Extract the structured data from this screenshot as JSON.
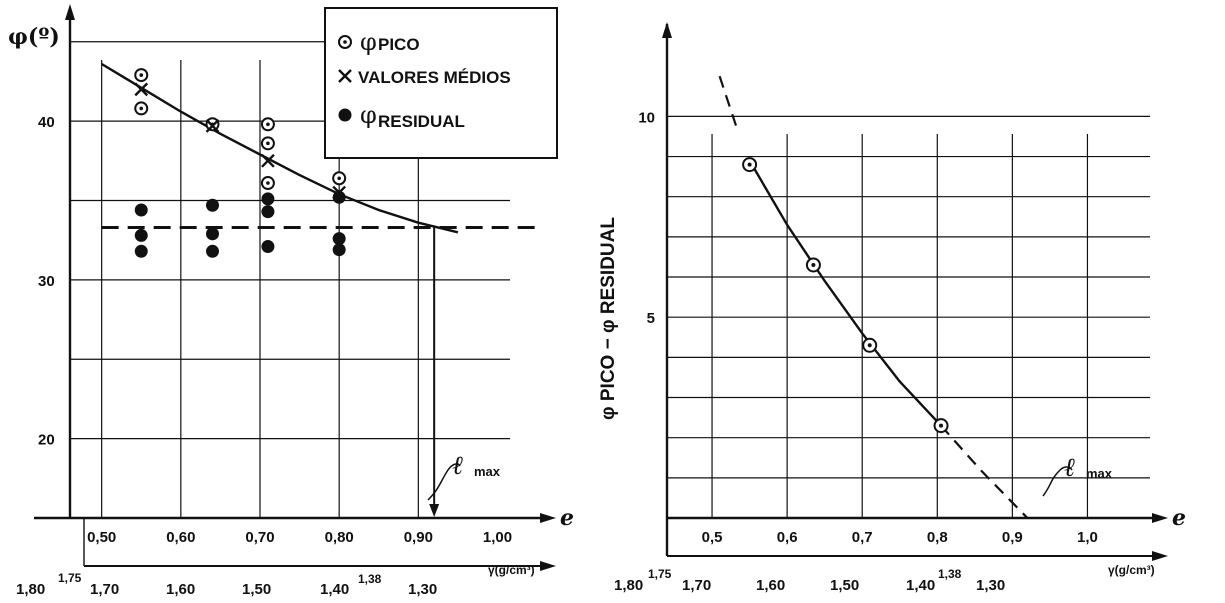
{
  "chart_data": [
    {
      "type": "scatter",
      "x_axis": {
        "label": "e",
        "ticks": [
          "0,50",
          "0,60",
          "0,70",
          "0,80",
          "0,90",
          "1,00"
        ],
        "range": [
          0.46,
          1.06
        ],
        "secondary_label": "γ(g/cm³)",
        "secondary_ticks": [
          "1,80",
          "1,75",
          "1,70",
          "1,60",
          "1,50",
          "1,40",
          "1,38",
          "1,30"
        ]
      },
      "y_axis": {
        "label": "φ(º)",
        "ticks": [
          "20",
          "30",
          "40"
        ],
        "range": [
          15,
          47
        ]
      },
      "legend": {
        "placement": "top-right",
        "items": [
          {
            "symbol": "open-circle",
            "label": "φ",
            "suffix": "PICO"
          },
          {
            "symbol": "cross",
            "label": "VALORES MÉDIOS"
          },
          {
            "symbol": "filled-circle",
            "label": "φ",
            "suffix": "RESIDUAL"
          }
        ]
      },
      "series": [
        {
          "name": "φ PICO",
          "points": [
            [
              0.55,
              42.9
            ],
            [
              0.55,
              40.8
            ],
            [
              0.64,
              39.8
            ],
            [
              0.71,
              39.8
            ],
            [
              0.71,
              38.6
            ],
            [
              0.71,
              36.1
            ],
            [
              0.8,
              36.4
            ]
          ]
        },
        {
          "name": "VALORES MÉDIOS",
          "points": [
            [
              0.55,
              42.0
            ],
            [
              0.64,
              39.7
            ],
            [
              0.71,
              37.5
            ],
            [
              0.8,
              35.5
            ]
          ]
        },
        {
          "name": "φ RESIDUAL",
          "points": [
            [
              0.55,
              34.4
            ],
            [
              0.55,
              32.8
            ],
            [
              0.55,
              31.8
            ],
            [
              0.64,
              34.7
            ],
            [
              0.64,
              32.9
            ],
            [
              0.64,
              31.8
            ],
            [
              0.71,
              35.1
            ],
            [
              0.71,
              34.3
            ],
            [
              0.71,
              32.1
            ],
            [
              0.8,
              35.2
            ],
            [
              0.8,
              32.6
            ],
            [
              0.8,
              31.9
            ]
          ]
        }
      ],
      "fit_curve": [
        [
          0.5,
          43.6
        ],
        [
          0.55,
          42.1
        ],
        [
          0.6,
          40.6
        ],
        [
          0.65,
          39.2
        ],
        [
          0.7,
          37.9
        ],
        [
          0.75,
          36.6
        ],
        [
          0.8,
          35.4
        ],
        [
          0.85,
          34.4
        ],
        [
          0.9,
          33.6
        ],
        [
          0.95,
          33.0
        ]
      ],
      "residual_line": {
        "y": 33.3,
        "x_from": 0.5,
        "x_to": 1.05
      },
      "drop_line": {
        "x": 0.92,
        "y_from": 33.3,
        "y_to": 15
      },
      "annotation": {
        "text": "ℓ",
        "suffix": "max"
      }
    },
    {
      "type": "scatter",
      "x_axis": {
        "label": "e",
        "ticks": [
          "0,5",
          "0,6",
          "0,7",
          "0,8",
          "0,9",
          "1,0"
        ],
        "range": [
          0.44,
          1.07
        ],
        "secondary_label": "γ(g/cm³)",
        "secondary_ticks": [
          "1,80",
          "1,75",
          "1,70",
          "1,60",
          "1,50",
          "1,40",
          "1,38",
          "1,30"
        ]
      },
      "y_axis": {
        "label": "φ PICO − φ RESIDUAL",
        "ticks": [
          "5",
          "10"
        ],
        "range": [
          0,
          12.4
        ]
      },
      "series": [
        {
          "name": "φ PICO − φ RESIDUAL",
          "points": [
            [
              0.55,
              8.8
            ],
            [
              0.635,
              6.3
            ],
            [
              0.71,
              4.3
            ],
            [
              0.805,
              2.3
            ]
          ]
        }
      ],
      "fit_curve_solid": [
        [
          0.525,
          10.5
        ],
        [
          0.55,
          8.9
        ],
        [
          0.6,
          7.3
        ],
        [
          0.65,
          5.9
        ],
        [
          0.7,
          4.6
        ],
        [
          0.75,
          3.4
        ],
        [
          0.805,
          2.3
        ]
      ],
      "fit_curve_dashed": [
        [
          0.45,
          10.6
        ],
        [
          0.525,
          10.5
        ],
        [
          0.805,
          2.3
        ],
        [
          0.86,
          1.15
        ],
        [
          0.92,
          0.0
        ]
      ],
      "annotation": {
        "text": "ℓ",
        "suffix": "max"
      }
    }
  ]
}
